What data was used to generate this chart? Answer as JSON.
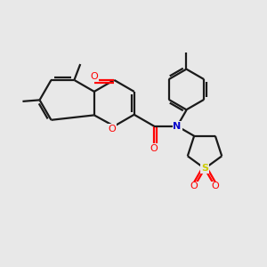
{
  "background_color": "#e8e8e8",
  "bond_color": "#1a1a1a",
  "o_color": "#ff0000",
  "n_color": "#0000cc",
  "s_color": "#cccc00",
  "line_width": 1.6,
  "figsize": [
    3.0,
    3.0
  ],
  "dpi": 100,
  "xlim": [
    0,
    10
  ],
  "ylim": [
    0,
    10
  ]
}
